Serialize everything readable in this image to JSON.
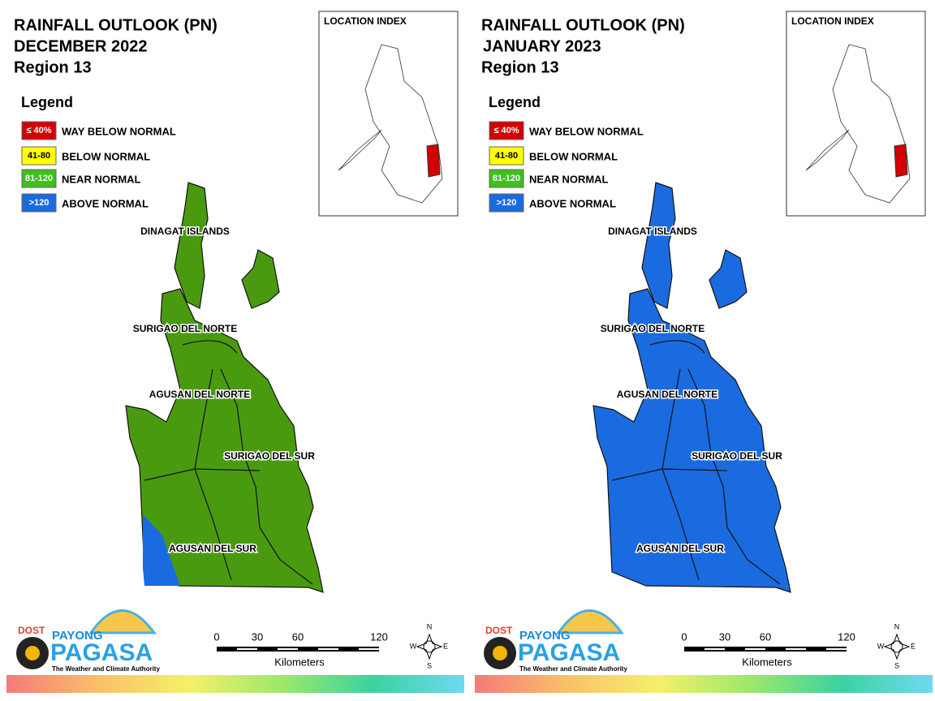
{
  "panels": [
    {
      "title": [
        "RAINFALL OUTLOOK (PN)",
        "DECEMBER 2022",
        "Region 13"
      ],
      "legend_title": "Legend",
      "legend": [
        {
          "range": "≤ 40%",
          "label": "WAY BELOW NORMAL",
          "color": "#d40000"
        },
        {
          "range": "41-80",
          "label": "BELOW NORMAL",
          "color": "#ffff00"
        },
        {
          "range": "81-120",
          "label": "NEAR NORMAL",
          "color": "#3cc21a"
        },
        {
          "range": ">120",
          "label": "ABOVE NORMAL",
          "color": "#1a6be0"
        }
      ],
      "map_color": "#4a9a10",
      "location_index": "LOCATION INDEX",
      "provinces": [
        "DINAGAT ISLANDS",
        "SURIGAO DEL NORTE",
        "AGUSAN DEL NORTE",
        "SURIGAO DEL SUR",
        "AGUSAN DEL SUR"
      ],
      "scale": {
        "ticks": [
          0,
          30,
          60,
          120
        ],
        "unit": "Kilometers"
      },
      "compass": [
        "N",
        "S",
        "E",
        "W"
      ],
      "logo": {
        "dost": "DOST",
        "payong": "PAYONG",
        "pagasa": "PAGASA",
        "tagline": "The Weather and Climate Authority"
      }
    },
    {
      "title": [
        "RAINFALL OUTLOOK (PN)",
        "JANUARY 2023",
        "Region 13"
      ],
      "legend_title": "Legend",
      "legend": [
        {
          "range": "≤ 40%",
          "label": "WAY BELOW NORMAL",
          "color": "#d40000"
        },
        {
          "range": "41-80",
          "label": "BELOW NORMAL",
          "color": "#ffff00"
        },
        {
          "range": "81-120",
          "label": "NEAR NORMAL",
          "color": "#3cc21a"
        },
        {
          "range": ">120",
          "label": "ABOVE NORMAL",
          "color": "#1a6be0"
        }
      ],
      "map_color": "#1a6be0",
      "location_index": "LOCATION INDEX",
      "provinces": [
        "DINAGAT ISLANDS",
        "SURIGAO DEL NORTE",
        "AGUSAN DEL NORTE",
        "SURIGAO DEL SUR",
        "AGUSAN DEL SUR"
      ],
      "scale": {
        "ticks": [
          0,
          30,
          60,
          120
        ],
        "unit": "Kilometers"
      },
      "compass": [
        "N",
        "S",
        "E",
        "W"
      ],
      "logo": {
        "dost": "DOST",
        "payong": "PAYONG",
        "pagasa": "PAGASA",
        "tagline": "The Weather and Climate Authority"
      }
    }
  ]
}
